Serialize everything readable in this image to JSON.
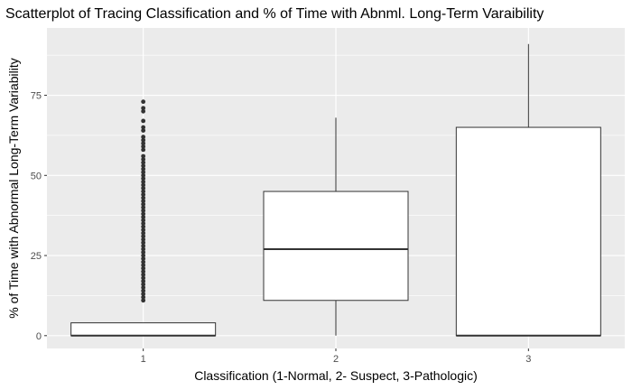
{
  "chart_data": {
    "type": "box",
    "title": "Scatterplot of Tracing Classification and % of Time with Abnml. Long-Term Varaibility",
    "xlabel": "Classification (1-Normal, 2- Suspect, 3-Pathologic)",
    "ylabel": "% of Time with Abnormal Long-Term Variability",
    "categories": [
      "1",
      "2",
      "3"
    ],
    "yticks": [
      0,
      25,
      50,
      75
    ],
    "ylim": [
      -4,
      96
    ],
    "grid": true,
    "colors": {
      "panel": "#ebebeb",
      "grid_major": "#ffffff",
      "box_fill": "#ffffff",
      "box_stroke": "#333333",
      "outlier": "#333333"
    },
    "boxes": [
      {
        "category": "1",
        "min": 0,
        "q1": 0,
        "median": 0,
        "q3": 4,
        "max": 4,
        "outliers": [
          11,
          12,
          13,
          14,
          15,
          16,
          17,
          18,
          19,
          20,
          21,
          22,
          23,
          24,
          25,
          26,
          27,
          28,
          29,
          30,
          31,
          32,
          33,
          34,
          35,
          36,
          37,
          38,
          39,
          40,
          41,
          42,
          43,
          44,
          45,
          46,
          47,
          48,
          49,
          50,
          51,
          52,
          53,
          54,
          55,
          56,
          58,
          59,
          60,
          61,
          62,
          64,
          65,
          67,
          70,
          71,
          73
        ]
      },
      {
        "category": "2",
        "min": 0,
        "q1": 11,
        "median": 27,
        "q3": 45,
        "max": 68,
        "outliers": []
      },
      {
        "category": "3",
        "min": 0,
        "q1": 0,
        "median": 0,
        "q3": 65,
        "max": 91,
        "outliers": []
      }
    ]
  }
}
